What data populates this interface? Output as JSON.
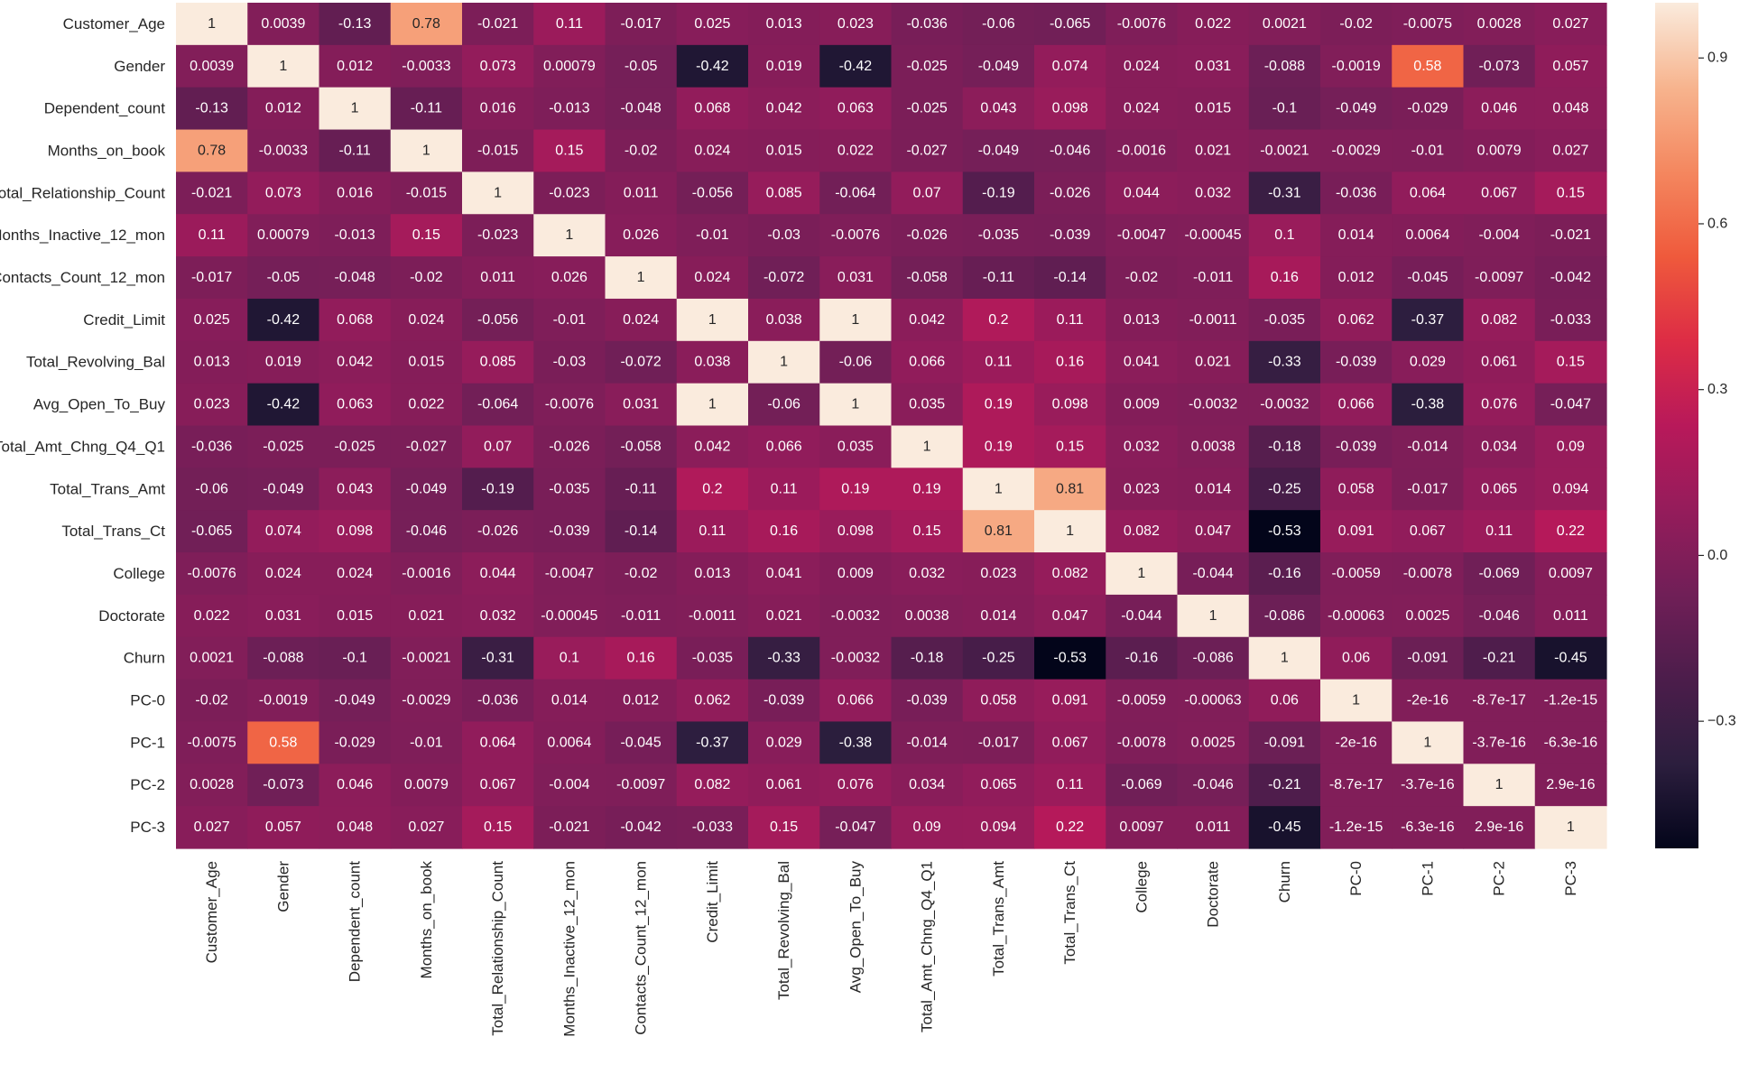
{
  "chart_data": {
    "type": "heatmap",
    "title": "",
    "xlabel": "",
    "ylabel": "",
    "variables": [
      "Customer_Age",
      "Gender",
      "Dependent_count",
      "Months_on_book",
      "Total_Relationship_Count",
      "Months_Inactive_12_mon",
      "Contacts_Count_12_mon",
      "Credit_Limit",
      "Total_Revolving_Bal",
      "Avg_Open_To_Buy",
      "Total_Amt_Chng_Q4_Q1",
      "Total_Trans_Amt",
      "Total_Trans_Ct",
      "College",
      "Doctorate",
      "Churn",
      "PC-0",
      "PC-1",
      "PC-2",
      "PC-3"
    ],
    "cell_labels": [
      [
        "1",
        "0.0039",
        "-0.13",
        "0.78",
        "-0.021",
        "0.11",
        "-0.017",
        "0.025",
        "0.013",
        "0.023",
        "-0.036",
        "-0.06",
        "-0.065",
        "-0.0076",
        "0.022",
        "0.0021",
        "-0.02",
        "-0.0075",
        "0.0028",
        "0.027"
      ],
      [
        "0.0039",
        "1",
        "0.012",
        "-0.0033",
        "0.073",
        "0.00079",
        "-0.05",
        "-0.42",
        "0.019",
        "-0.42",
        "-0.025",
        "-0.049",
        "0.074",
        "0.024",
        "0.031",
        "-0.088",
        "-0.0019",
        "0.58",
        "-0.073",
        "0.057"
      ],
      [
        "-0.13",
        "0.012",
        "1",
        "-0.11",
        "0.016",
        "-0.013",
        "-0.048",
        "0.068",
        "0.042",
        "0.063",
        "-0.025",
        "0.043",
        "0.098",
        "0.024",
        "0.015",
        "-0.1",
        "-0.049",
        "-0.029",
        "0.046",
        "0.048"
      ],
      [
        "0.78",
        "-0.0033",
        "-0.11",
        "1",
        "-0.015",
        "0.15",
        "-0.02",
        "0.024",
        "0.015",
        "0.022",
        "-0.027",
        "-0.049",
        "-0.046",
        "-0.0016",
        "0.021",
        "-0.0021",
        "-0.0029",
        "-0.01",
        "0.0079",
        "0.027"
      ],
      [
        "-0.021",
        "0.073",
        "0.016",
        "-0.015",
        "1",
        "-0.023",
        "0.011",
        "-0.056",
        "0.085",
        "-0.064",
        "0.07",
        "-0.19",
        "-0.026",
        "0.044",
        "0.032",
        "-0.31",
        "-0.036",
        "0.064",
        "0.067",
        "0.15"
      ],
      [
        "0.11",
        "0.00079",
        "-0.013",
        "0.15",
        "-0.023",
        "1",
        "0.026",
        "-0.01",
        "-0.03",
        "-0.0076",
        "-0.026",
        "-0.035",
        "-0.039",
        "-0.0047",
        "-0.00045",
        "0.1",
        "0.014",
        "0.0064",
        "-0.004",
        "-0.021"
      ],
      [
        "-0.017",
        "-0.05",
        "-0.048",
        "-0.02",
        "0.011",
        "0.026",
        "1",
        "0.024",
        "-0.072",
        "0.031",
        "-0.058",
        "-0.11",
        "-0.14",
        "-0.02",
        "-0.011",
        "0.16",
        "0.012",
        "-0.045",
        "-0.0097",
        "-0.042"
      ],
      [
        "0.025",
        "-0.42",
        "0.068",
        "0.024",
        "-0.056",
        "-0.01",
        "0.024",
        "1",
        "0.038",
        "1",
        "0.042",
        "0.2",
        "0.11",
        "0.013",
        "-0.0011",
        "-0.035",
        "0.062",
        "-0.37",
        "0.082",
        "-0.033"
      ],
      [
        "0.013",
        "0.019",
        "0.042",
        "0.015",
        "0.085",
        "-0.03",
        "-0.072",
        "0.038",
        "1",
        "-0.06",
        "0.066",
        "0.11",
        "0.16",
        "0.041",
        "0.021",
        "-0.33",
        "-0.039",
        "0.029",
        "0.061",
        "0.15"
      ],
      [
        "0.023",
        "-0.42",
        "0.063",
        "0.022",
        "-0.064",
        "-0.0076",
        "0.031",
        "1",
        "-0.06",
        "1",
        "0.035",
        "0.19",
        "0.098",
        "0.009",
        "-0.0032",
        "-0.0032",
        "0.066",
        "-0.38",
        "0.076",
        "-0.047"
      ],
      [
        "-0.036",
        "-0.025",
        "-0.025",
        "-0.027",
        "0.07",
        "-0.026",
        "-0.058",
        "0.042",
        "0.066",
        "0.035",
        "1",
        "0.19",
        "0.15",
        "0.032",
        "0.0038",
        "-0.18",
        "-0.039",
        "-0.014",
        "0.034",
        "0.09"
      ],
      [
        "-0.06",
        "-0.049",
        "0.043",
        "-0.049",
        "-0.19",
        "-0.035",
        "-0.11",
        "0.2",
        "0.11",
        "0.19",
        "0.19",
        "1",
        "0.81",
        "0.023",
        "0.014",
        "-0.25",
        "0.058",
        "-0.017",
        "0.065",
        "0.094"
      ],
      [
        "-0.065",
        "0.074",
        "0.098",
        "-0.046",
        "-0.026",
        "-0.039",
        "-0.14",
        "0.11",
        "0.16",
        "0.098",
        "0.15",
        "0.81",
        "1",
        "0.082",
        "0.047",
        "-0.53",
        "0.091",
        "0.067",
        "0.11",
        "0.22"
      ],
      [
        "-0.0076",
        "0.024",
        "0.024",
        "-0.0016",
        "0.044",
        "-0.0047",
        "-0.02",
        "0.013",
        "0.041",
        "0.009",
        "0.032",
        "0.023",
        "0.082",
        "1",
        "-0.044",
        "-0.16",
        "-0.0059",
        "-0.0078",
        "-0.069",
        "0.0097"
      ],
      [
        "0.022",
        "0.031",
        "0.015",
        "0.021",
        "0.032",
        "-0.00045",
        "-0.011",
        "-0.0011",
        "0.021",
        "-0.0032",
        "0.0038",
        "0.014",
        "0.047",
        "-0.044",
        "1",
        "-0.086",
        "-0.00063",
        "0.0025",
        "-0.046",
        "0.011"
      ],
      [
        "0.0021",
        "-0.088",
        "-0.1",
        "-0.0021",
        "-0.31",
        "0.1",
        "0.16",
        "-0.035",
        "-0.33",
        "-0.0032",
        "-0.18",
        "-0.25",
        "-0.53",
        "-0.16",
        "-0.086",
        "1",
        "0.06",
        "-0.091",
        "-0.21",
        "-0.45"
      ],
      [
        "-0.02",
        "-0.0019",
        "-0.049",
        "-0.0029",
        "-0.036",
        "0.014",
        "0.012",
        "0.062",
        "-0.039",
        "0.066",
        "-0.039",
        "0.058",
        "0.091",
        "-0.0059",
        "-0.00063",
        "0.06",
        "1",
        "-2e-16",
        "-8.7e-17",
        "-1.2e-15"
      ],
      [
        "-0.0075",
        "0.58",
        "-0.029",
        "-0.01",
        "0.064",
        "0.0064",
        "-0.045",
        "-0.37",
        "0.029",
        "-0.38",
        "-0.014",
        "-0.017",
        "0.067",
        "-0.0078",
        "0.0025",
        "-0.091",
        "-2e-16",
        "1",
        "-3.7e-16",
        "-6.3e-16"
      ],
      [
        "0.0028",
        "-0.073",
        "0.046",
        "0.0079",
        "0.067",
        "-0.004",
        "-0.0097",
        "0.082",
        "0.061",
        "0.076",
        "0.034",
        "0.065",
        "0.11",
        "-0.069",
        "-0.046",
        "-0.21",
        "-8.7e-17",
        "-3.7e-16",
        "1",
        "2.9e-16"
      ],
      [
        "0.027",
        "0.057",
        "0.048",
        "0.027",
        "0.15",
        "-0.021",
        "-0.042",
        "-0.033",
        "0.15",
        "-0.047",
        "0.09",
        "0.094",
        "0.22",
        "0.0097",
        "0.011",
        "-0.45",
        "-1.2e-15",
        "-6.3e-16",
        "2.9e-16",
        "1"
      ]
    ],
    "value_range": [
      -0.53,
      1
    ],
    "colorbar": {
      "ticks": [
        0.9,
        0.6,
        0.3,
        0.0,
        -0.3
      ],
      "tick_labels": [
        "0.9",
        "0.6",
        "0.3",
        "0.0",
        "−0.3"
      ],
      "placement": "right"
    },
    "colormap_stops": [
      {
        "v": 0.0,
        "color": "#03051a"
      },
      {
        "v": 0.1,
        "color": "#2c1e3e"
      },
      {
        "v": 0.2,
        "color": "#4c1d4b"
      },
      {
        "v": 0.3,
        "color": "#701f57"
      },
      {
        "v": 0.4,
        "color": "#951c5b"
      },
      {
        "v": 0.5,
        "color": "#b8195a"
      },
      {
        "v": 0.6,
        "color": "#dd2c45"
      },
      {
        "v": 0.7,
        "color": "#ef5a3c"
      },
      {
        "v": 0.8,
        "color": "#f4875f"
      },
      {
        "v": 0.9,
        "color": "#f7b48e"
      },
      {
        "v": 1.0,
        "color": "#faebdd"
      }
    ]
  }
}
